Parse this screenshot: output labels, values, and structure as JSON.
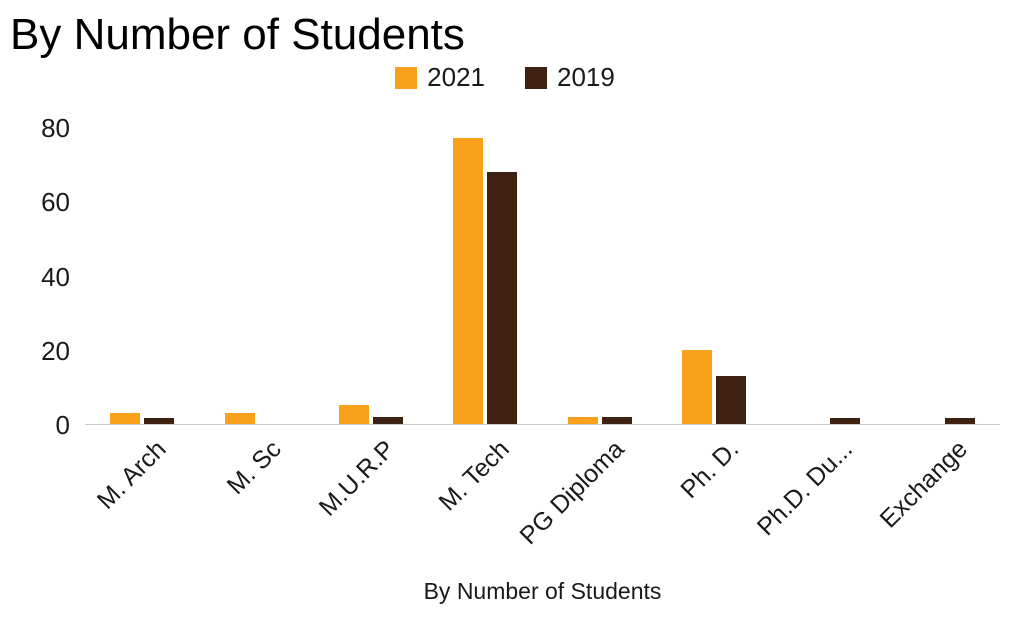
{
  "chart_data": {
    "type": "bar",
    "title": "By Number of Students",
    "xlabel": "By Number of Students",
    "ylabel": "",
    "categories": [
      "M. Arch",
      "M. Sc",
      "M.U.R.P",
      "M. Tech",
      "PG Diploma",
      "Ph. D.",
      "Ph.D. Du...",
      "Exchange"
    ],
    "series": [
      {
        "name": "2021",
        "color": "#F9A11B",
        "values": [
          3,
          3,
          5,
          77,
          2,
          20,
          0,
          0
        ]
      },
      {
        "name": "2019",
        "color": "#3F2112",
        "values": [
          1.5,
          0,
          2,
          68,
          2,
          13,
          1.5,
          1.5
        ]
      }
    ],
    "ylim": [
      0,
      80
    ],
    "yticks": [
      0,
      20,
      40,
      60,
      80
    ],
    "legend_position": "top",
    "grid": false,
    "colors": {
      "series_2021": "#F9A11B",
      "series_2019": "#3F2112",
      "axis_line": "#c9c9c9",
      "text": "#1a1a1a"
    }
  }
}
